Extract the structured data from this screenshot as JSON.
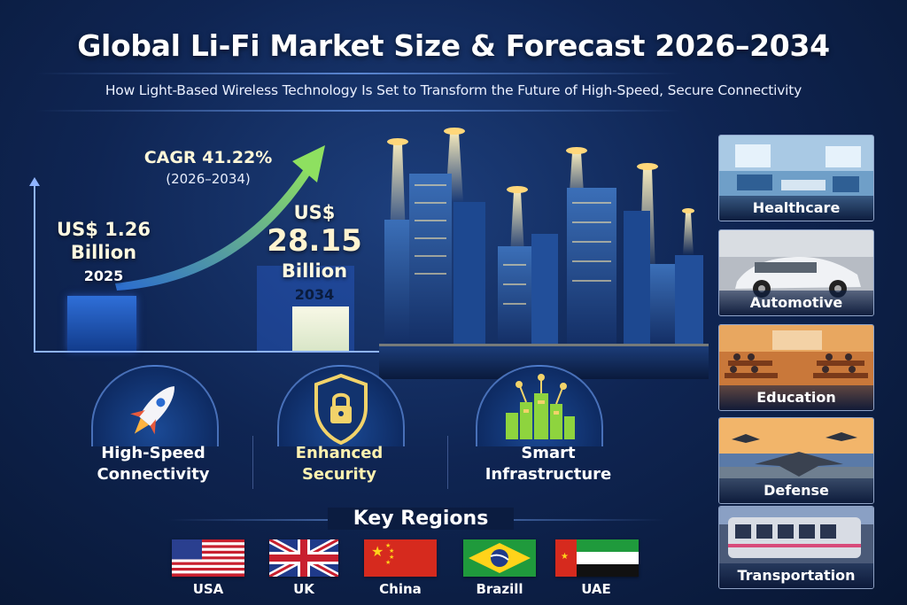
{
  "header": {
    "title": "Global Li-Fi Market Size & Forecast 2026–2034",
    "subtitle": "How Light-Based Wireless Technology Is Set to Transform the Future of High-Speed, Secure Connectivity"
  },
  "market": {
    "start": {
      "currency": "US$ 1.26",
      "unit": "Billion",
      "year": "2025",
      "value": 1.26
    },
    "end": {
      "currency": "US$",
      "number": "28.15",
      "unit": "Billion",
      "year": "2034",
      "value": 28.15
    },
    "cagr": "CAGR 41.22%",
    "cagr_range": "(2026–2034)"
  },
  "features": [
    {
      "label_line1": "High-Speed",
      "label_line2": "Connectivity",
      "icon": "rocket-icon"
    },
    {
      "label_line1": "Enhanced",
      "label_line2": "Security",
      "icon": "lock-shield-icon"
    },
    {
      "label_line1": "Smart",
      "label_line2": "Infrastructure",
      "icon": "smart-city-icon"
    }
  ],
  "regions": {
    "title": "Key Regions",
    "items": [
      {
        "label": "USA",
        "icon": "usa-flag-icon"
      },
      {
        "label": "UK",
        "icon": "uk-flag-icon"
      },
      {
        "label": "China",
        "icon": "china-flag-icon"
      },
      {
        "label": "Brazill",
        "icon": "brazil-flag-icon"
      },
      {
        "label": "UAE",
        "icon": "uae-flag-icon"
      }
    ]
  },
  "applications": [
    {
      "label": "Healthcare",
      "icon": "hospital-room-image"
    },
    {
      "label": "Automotive",
      "icon": "car-image"
    },
    {
      "label": "Education",
      "icon": "classroom-image"
    },
    {
      "label": "Defense",
      "icon": "aircraft-image"
    },
    {
      "label": "Transportation",
      "icon": "train-image"
    }
  ],
  "colors": {
    "background": "#0f2553",
    "accent": "#8fb4ff",
    "bar_start": "#2f6fd8",
    "bar_end": "#f8f8e6",
    "arrow": "#8ee060"
  }
}
